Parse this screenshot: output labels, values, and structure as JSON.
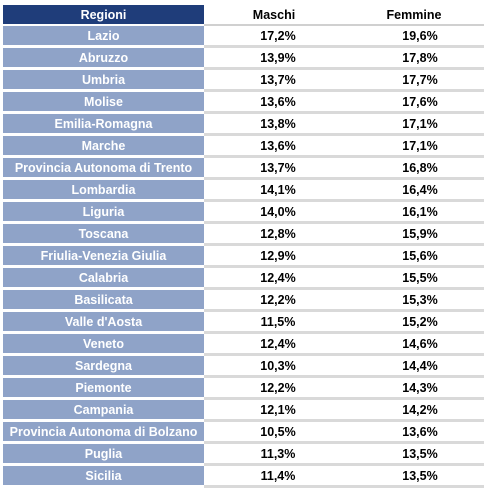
{
  "table": {
    "headers": {
      "region": "Regioni",
      "males": "Maschi",
      "females": "Femmine"
    },
    "rows": [
      {
        "region": "Lazio",
        "males": "17,2%",
        "females": "19,6%"
      },
      {
        "region": "Abruzzo",
        "males": "13,9%",
        "females": "17,8%"
      },
      {
        "region": "Umbria",
        "males": "13,7%",
        "females": "17,7%"
      },
      {
        "region": "Molise",
        "males": "13,6%",
        "females": "17,6%"
      },
      {
        "region": "Emilia-Romagna",
        "males": "13,8%",
        "females": "17,1%"
      },
      {
        "region": "Marche",
        "males": "13,6%",
        "females": "17,1%"
      },
      {
        "region": "Provincia Autonoma di Trento",
        "males": "13,7%",
        "females": "16,8%"
      },
      {
        "region": "Lombardia",
        "males": "14,1%",
        "females": "16,4%"
      },
      {
        "region": "Liguria",
        "males": "14,0%",
        "females": "16,1%"
      },
      {
        "region": "Toscana",
        "males": "12,8%",
        "females": "15,9%"
      },
      {
        "region": "Friulia-Venezia Giulia",
        "males": "12,9%",
        "females": "15,6%"
      },
      {
        "region": "Calabria",
        "males": "12,4%",
        "females": "15,5%"
      },
      {
        "region": "Basilicata",
        "males": "12,2%",
        "females": "15,3%"
      },
      {
        "region": "Valle d'Aosta",
        "males": "11,5%",
        "females": "15,2%"
      },
      {
        "region": "Veneto",
        "males": "12,4%",
        "females": "14,6%"
      },
      {
        "region": "Sardegna",
        "males": "10,3%",
        "females": "14,4%"
      },
      {
        "region": "Piemonte",
        "males": "12,2%",
        "females": "14,3%"
      },
      {
        "region": "Campania",
        "males": "12,1%",
        "females": "14,2%"
      },
      {
        "region": "Provincia Autonoma di Bolzano",
        "males": "10,5%",
        "females": "13,6%"
      },
      {
        "region": "Puglia",
        "males": "11,3%",
        "females": "13,5%"
      },
      {
        "region": "Sicilia",
        "males": "11,4%",
        "females": "13,5%"
      }
    ]
  },
  "colors": {
    "header_region_bg": "#1f3d7a",
    "region_cell_bg": "#8fa3c8",
    "region_text": "#ffffff",
    "value_text": "#000000"
  }
}
